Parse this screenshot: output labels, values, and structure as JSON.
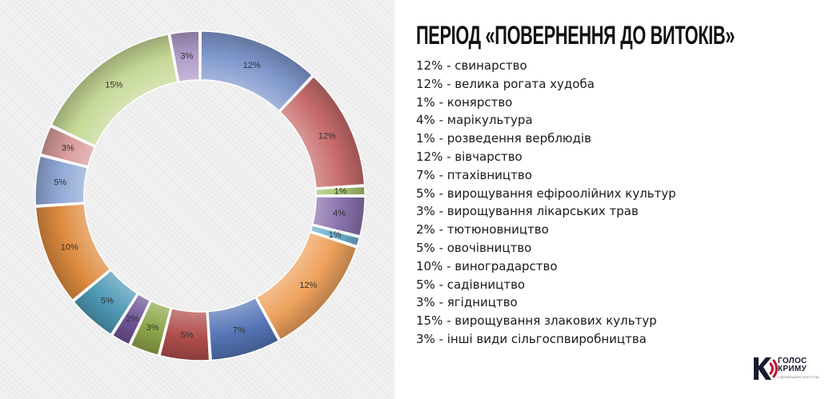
{
  "header": {
    "title": "ПЕРІОД «ПОВЕРНЕННЯ ДО ВИТОКІВ»"
  },
  "legend": {
    "items": [
      "12% - свинарство",
      "12% - велика рогата худоба",
      "1% - конярство",
      "4% - марікультура",
      "1% - розведення верблюдів",
      "12% - вівчарство",
      "7% - птахівництво",
      "5% - вирощування ефіроолійних культур",
      "3% - вирощування лікарських трав",
      "2% - тютюновництво",
      "5% - овочівництво",
      "10% - виноградарство",
      "5% - садівництво",
      "3% - ягідництво",
      "15% - вирощування злакових культур",
      "3% - інші види сільгоспвиробництва"
    ]
  },
  "logo": {
    "line1": "ГОЛОС",
    "line2": "КРИМУ",
    "tagline": "інформаційне агентство",
    "mark_color": "#c8102e",
    "text_color": "#1a1a2e"
  },
  "chart_data": {
    "type": "pie",
    "style": "donut",
    "categories": [
      "свинарство",
      "велика рогата худоба",
      "конярство",
      "марікультура",
      "розведення верблюдів",
      "вівчарство",
      "птахівництво",
      "вирощування ефіроолійних культур",
      "вирощування лікарських трав",
      "тютюновництво",
      "овочівництво",
      "виноградарство",
      "садівництво",
      "ягідництво",
      "вирощування злакових культур",
      "інші види сільгоспвиробництва"
    ],
    "values": [
      12,
      12,
      1,
      4,
      1,
      12,
      7,
      5,
      3,
      2,
      5,
      10,
      5,
      3,
      15,
      3
    ],
    "labels": [
      "12%",
      "12%",
      "1%",
      "4%",
      "1%",
      "12%",
      "7%",
      "5%",
      "3%",
      "2%",
      "5%",
      "10%",
      "5%",
      "3%",
      "15%",
      "3%"
    ],
    "colors": [
      "#7f97cc",
      "#c76b6b",
      "#a7c36b",
      "#8a72ad",
      "#6bb0cf",
      "#eea25d",
      "#5575b6",
      "#b04e4c",
      "#8ea64a",
      "#6f5596",
      "#4f9ab6",
      "#de8b3f",
      "#91a9d6",
      "#d89a9a",
      "#c5d895",
      "#ad9ac8"
    ],
    "start_angle": "top",
    "direction": "clockwise"
  }
}
